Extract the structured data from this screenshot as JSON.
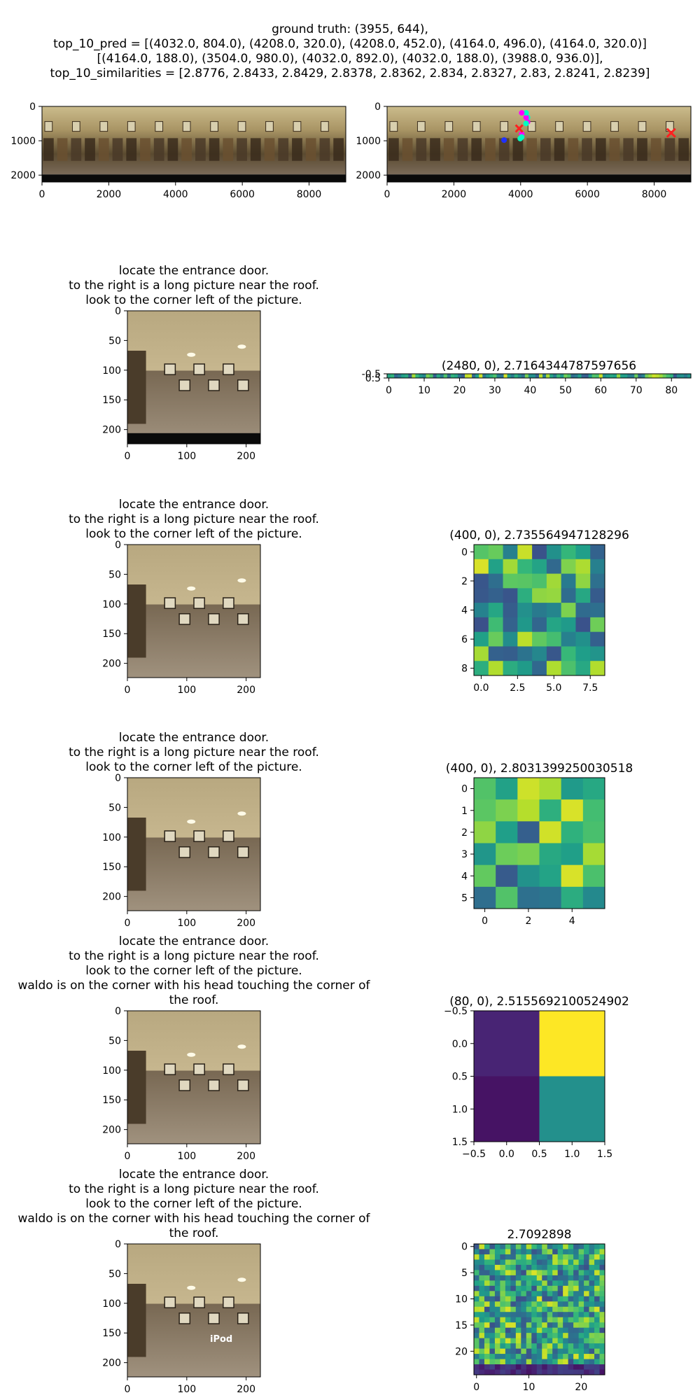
{
  "header": {
    "line1": "ground truth: (3955, 644),",
    "line2": "top_10_pred = [(4032.0, 804.0), (4208.0, 320.0), (4208.0, 452.0), (4164.0, 496.0), (4164.0, 320.0)]",
    "line3": "[(4164.0, 188.0), (3504.0, 980.0), (4032.0, 892.0), (4032.0, 188.0), (3988.0, 936.0)],",
    "line4": "top_10_similarities = [2.8776, 2.8433, 2.8429, 2.8378, 2.8362, 2.834, 2.8327, 2.83, 2.8241, 2.8239]"
  },
  "panoramas": {
    "x_ticks": [
      "0",
      "2000",
      "4000",
      "6000",
      "8000"
    ],
    "y_ticks": [
      "0",
      "1000",
      "2000"
    ],
    "pred_points": [
      [
        4032,
        804
      ],
      [
        4208,
        320
      ],
      [
        4208,
        452
      ],
      [
        4164,
        496
      ],
      [
        4164,
        320
      ],
      [
        4164,
        188
      ],
      [
        3504,
        980
      ],
      [
        4032,
        892
      ],
      [
        4032,
        188
      ],
      [
        3988,
        936
      ]
    ],
    "ground_truth": [
      3955,
      644
    ],
    "colors": {
      "pred": "#ff00ff",
      "pred2": "#00ffc0",
      "gt": "#ff2020",
      "blue": "#2030ff"
    }
  },
  "rows": [
    {
      "caption": [
        "locate the entrance door.",
        "to the right is a long picture near the roof.",
        "look to the corner left of the picture."
      ],
      "img_xticks": [
        "0",
        "100",
        "200"
      ],
      "img_yticks": [
        "0",
        "50",
        "100",
        "150",
        "200"
      ],
      "heat_title": "(2480, 0), 2.7164344787597656",
      "heat_xticks": [
        "0",
        "10",
        "20",
        "30",
        "40",
        "50",
        "60",
        "70",
        "80"
      ],
      "heat_yticks": [
        "-0.5",
        "0.5"
      ]
    },
    {
      "caption": [
        "locate the entrance door.",
        "to the right is a long picture near the roof.",
        "look to the corner left of the picture."
      ],
      "img_xticks": [
        "0",
        "100",
        "200"
      ],
      "img_yticks": [
        "0",
        "50",
        "100",
        "150",
        "200"
      ],
      "heat_title": "(400, 0), 2.735564947128296",
      "heat_xticks": [
        "0.0",
        "2.5",
        "5.0",
        "7.5"
      ],
      "heat_yticks": [
        "0",
        "2",
        "4",
        "6",
        "8"
      ]
    },
    {
      "caption": [
        "locate the entrance door.",
        "to the right is a long picture near the roof.",
        "look to the corner left of the picture."
      ],
      "img_xticks": [
        "0",
        "100",
        "200"
      ],
      "img_yticks": [
        "0",
        "50",
        "100",
        "150",
        "200"
      ],
      "heat_title": "(400, 0), 2.8031399250030518",
      "heat_xticks": [
        "0",
        "2",
        "4"
      ],
      "heat_yticks": [
        "0",
        "1",
        "2",
        "3",
        "4",
        "5"
      ]
    },
    {
      "caption": [
        "locate the entrance door.",
        "to the right is a long picture near the roof.",
        "look to the corner left of the picture.",
        "waldo is on the corner with his head touching the corner of",
        "the roof."
      ],
      "img_xticks": [
        "0",
        "100",
        "200"
      ],
      "img_yticks": [
        "0",
        "50",
        "100",
        "150",
        "200"
      ],
      "heat_title": "(80, 0), 2.5155692100524902",
      "heat_xticks": [
        "−0.5",
        "0.0",
        "0.5",
        "1.0",
        "1.5"
      ],
      "heat_yticks": [
        "−0.5",
        "0.0",
        "0.5",
        "1.0",
        "1.5"
      ]
    },
    {
      "caption": [
        "locate the entrance door.",
        "to the right is a long picture near the roof.",
        "look to the corner left of the picture.",
        "waldo is on the corner with his head touching the corner of",
        "the roof."
      ],
      "img_xticks": [
        "0",
        "100",
        "200"
      ],
      "img_yticks": [
        "0",
        "50",
        "100",
        "150",
        "200"
      ],
      "img_label": "iPod",
      "heat_title": "2.7092898",
      "heat_xticks": [
        "0",
        "10",
        "20"
      ],
      "heat_yticks": [
        "0",
        "5",
        "10",
        "15",
        "20"
      ]
    }
  ],
  "chart_data": [
    {
      "type": "scatter",
      "x": [
        4032,
        4208,
        4208,
        4164,
        4164,
        4164,
        3504,
        4032,
        4032,
        3988
      ],
      "y": [
        804,
        320,
        452,
        496,
        320,
        188,
        980,
        892,
        188,
        936
      ],
      "ground_truth": [
        3955,
        644
      ],
      "xlim": [
        0,
        9000
      ],
      "ylim": [
        2200,
        0
      ]
    },
    {
      "type": "heatmap",
      "title": "(2480, 0), 2.7164344787597656",
      "shape": [
        1,
        86
      ]
    },
    {
      "type": "heatmap",
      "title": "(400, 0), 2.735564947128296",
      "shape": [
        9,
        9
      ]
    },
    {
      "type": "heatmap",
      "title": "(400, 0), 2.8031399250030518",
      "shape": [
        6,
        6
      ]
    },
    {
      "type": "heatmap",
      "title": "(80, 0), 2.5155692100524902",
      "shape": [
        2,
        2
      ],
      "values": [
        [
          0.1,
          1.0
        ],
        [
          0.05,
          0.5
        ]
      ]
    },
    {
      "type": "heatmap",
      "title": "2.7092898",
      "shape": [
        25,
        25
      ]
    }
  ]
}
